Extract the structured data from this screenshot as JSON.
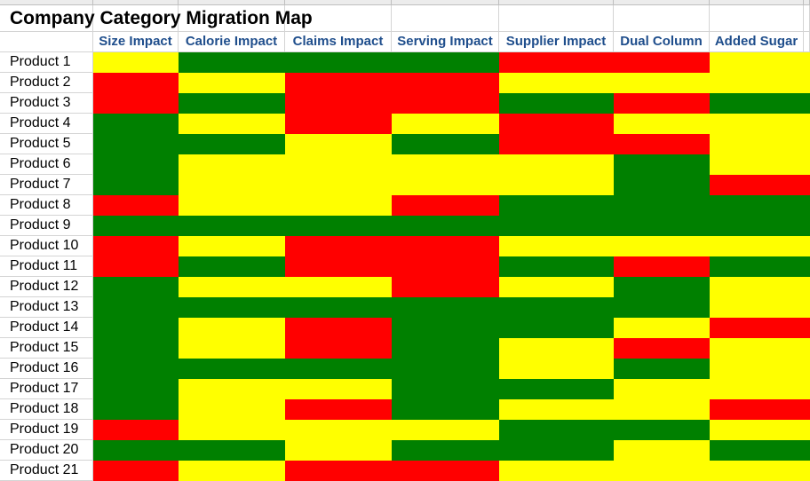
{
  "sheet": {
    "title": "Company Category Migration Map",
    "columns": [
      "Size Impact",
      "Calorie Impact",
      "Claims Impact",
      "Serving Impact",
      "Supplier Impact",
      "Dual Column",
      "Added Sugar"
    ],
    "products": [
      "Product 1",
      "Product 2",
      "Product 3",
      "Product 4",
      "Product 5",
      "Product 6",
      "Product 7",
      "Product 8",
      "Product 9",
      "Product 10",
      "Product 11",
      "Product 12",
      "Product 13",
      "Product 14",
      "Product 15",
      "Product 16",
      "Product 17",
      "Product 18",
      "Product 19",
      "Product 20",
      "Product 21"
    ],
    "ratings": [
      [
        "yellow",
        "green",
        "green",
        "green",
        "red",
        "red",
        "yellow"
      ],
      [
        "red",
        "yellow",
        "red",
        "red",
        "yellow",
        "yellow",
        "yellow"
      ],
      [
        "red",
        "green",
        "red",
        "red",
        "green",
        "red",
        "green"
      ],
      [
        "green",
        "yellow",
        "red",
        "yellow",
        "red",
        "yellow",
        "yellow"
      ],
      [
        "green",
        "green",
        "yellow",
        "green",
        "red",
        "red",
        "yellow"
      ],
      [
        "green",
        "yellow",
        "yellow",
        "yellow",
        "yellow",
        "green",
        "yellow"
      ],
      [
        "green",
        "yellow",
        "yellow",
        "yellow",
        "yellow",
        "green",
        "red"
      ],
      [
        "red",
        "yellow",
        "yellow",
        "red",
        "green",
        "green",
        "green"
      ],
      [
        "green",
        "green",
        "green",
        "green",
        "green",
        "green",
        "green"
      ],
      [
        "red",
        "yellow",
        "red",
        "red",
        "yellow",
        "yellow",
        "yellow"
      ],
      [
        "red",
        "green",
        "red",
        "red",
        "green",
        "red",
        "green"
      ],
      [
        "green",
        "yellow",
        "yellow",
        "red",
        "yellow",
        "green",
        "yellow"
      ],
      [
        "green",
        "green",
        "green",
        "green",
        "green",
        "green",
        "yellow"
      ],
      [
        "green",
        "yellow",
        "red",
        "green",
        "green",
        "yellow",
        "red"
      ],
      [
        "green",
        "yellow",
        "red",
        "green",
        "yellow",
        "red",
        "yellow"
      ],
      [
        "green",
        "green",
        "green",
        "green",
        "yellow",
        "green",
        "yellow"
      ],
      [
        "green",
        "yellow",
        "yellow",
        "green",
        "green",
        "yellow",
        "yellow"
      ],
      [
        "green",
        "yellow",
        "red",
        "green",
        "yellow",
        "yellow",
        "red"
      ],
      [
        "red",
        "yellow",
        "yellow",
        "yellow",
        "green",
        "green",
        "yellow"
      ],
      [
        "green",
        "green",
        "yellow",
        "green",
        "green",
        "yellow",
        "green"
      ],
      [
        "red",
        "yellow",
        "red",
        "red",
        "yellow",
        "yellow",
        "yellow"
      ]
    ],
    "palette": {
      "green": "#008000",
      "yellow": "#ffff00",
      "red": "#ff0000",
      "header_text": "#1f4e8c",
      "gridline": "#d4d4d4"
    }
  }
}
